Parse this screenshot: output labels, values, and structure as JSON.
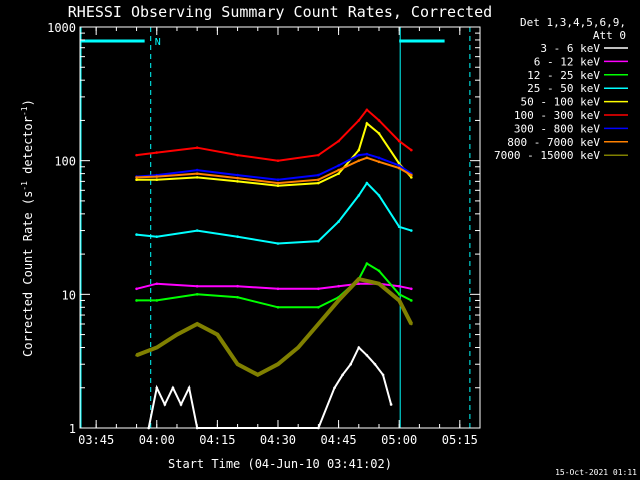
{
  "chart_data": {
    "type": "line",
    "title": "RHESSI Observing Summary Count Rates, Corrected",
    "xlabel": "Start Time (04-Jun-10 03:41:02)",
    "ylabel": "Corrected Count Rate (s⁻¹ detector⁻¹)",
    "ylabel_main": "Corrected Count Rate (s",
    "ylabel_mid": " detector",
    "ylabel_end": ")",
    "ylabel_sup": "-1",
    "yscale": "log",
    "ylim": [
      1,
      1000
    ],
    "xlim": [
      "03:41",
      "05:20"
    ],
    "x_ticks": [
      "03:45",
      "04:00",
      "04:15",
      "04:30",
      "04:45",
      "05:00",
      "05:15"
    ],
    "y_ticks": [
      "1",
      "10",
      "100",
      "1000"
    ],
    "legend_header": [
      "Det 1,3,4,5,6,9,",
      "Att 0"
    ],
    "legend_position": "right",
    "timestamp": "15-Oct-2021 01:11",
    "night_marker": "N",
    "series": [
      {
        "name": "3 - 6 keV",
        "color": "#ffffff",
        "x": [
          "03:58",
          "04:00",
          "04:02",
          "04:04",
          "04:06",
          "04:08",
          "04:10",
          "04:40",
          "04:44",
          "04:46",
          "04:48",
          "04:50",
          "04:52",
          "04:54",
          "04:56",
          "04:58"
        ],
        "y": [
          1,
          2,
          1.5,
          2,
          1.5,
          2,
          1,
          1,
          2,
          2.5,
          3,
          4,
          3.5,
          3,
          2.5,
          1.5
        ]
      },
      {
        "name": "6 - 12 keV",
        "color": "#ff00ff",
        "x": [
          "03:55",
          "04:00",
          "04:10",
          "04:20",
          "04:30",
          "04:40",
          "04:45",
          "04:50",
          "04:55",
          "05:00",
          "05:03"
        ],
        "y": [
          11,
          12,
          11.5,
          11.5,
          11,
          11,
          11.5,
          12,
          12,
          11.5,
          11
        ]
      },
      {
        "name": "12 - 25 keV",
        "color": "#00ff00",
        "x": [
          "03:55",
          "04:00",
          "04:10",
          "04:20",
          "04:30",
          "04:40",
          "04:45",
          "04:50",
          "04:52",
          "04:55",
          "05:00",
          "05:03"
        ],
        "y": [
          9,
          9,
          10,
          9.5,
          8,
          8,
          9.5,
          13,
          17,
          15,
          10,
          9
        ]
      },
      {
        "name": "25 - 50 keV",
        "color": "#00ffff",
        "x": [
          "03:55",
          "04:00",
          "04:10",
          "04:20",
          "04:30",
          "04:40",
          "04:45",
          "04:50",
          "04:52",
          "04:55",
          "05:00",
          "05:03"
        ],
        "y": [
          28,
          27,
          30,
          27,
          24,
          25,
          35,
          55,
          68,
          55,
          32,
          30
        ]
      },
      {
        "name": "50 - 100 keV",
        "color": "#ffff00",
        "x": [
          "03:55",
          "04:00",
          "04:10",
          "04:20",
          "04:30",
          "04:40",
          "04:45",
          "04:50",
          "04:52",
          "04:55",
          "05:00",
          "05:03"
        ],
        "y": [
          72,
          72,
          75,
          70,
          65,
          68,
          80,
          120,
          190,
          160,
          95,
          75
        ]
      },
      {
        "name": "100 - 300 keV",
        "color": "#ff0000",
        "x": [
          "03:55",
          "04:00",
          "04:10",
          "04:20",
          "04:30",
          "04:40",
          "04:45",
          "04:50",
          "04:52",
          "04:55",
          "05:00",
          "05:03"
        ],
        "y": [
          110,
          115,
          125,
          110,
          100,
          110,
          140,
          200,
          240,
          200,
          140,
          120
        ]
      },
      {
        "name": "300 - 800 keV",
        "color": "#0000ff",
        "x": [
          "03:55",
          "04:00",
          "04:10",
          "04:20",
          "04:30",
          "04:40",
          "04:45",
          "04:50",
          "04:52",
          "04:55",
          "05:00",
          "05:03"
        ],
        "y": [
          76,
          78,
          85,
          78,
          72,
          78,
          92,
          110,
          112,
          105,
          92,
          80
        ]
      },
      {
        "name": "800 - 7000 keV",
        "color": "#ff8000",
        "x": [
          "03:55",
          "04:00",
          "04:10",
          "04:20",
          "04:30",
          "04:40",
          "04:45",
          "04:50",
          "04:52",
          "04:55",
          "05:00",
          "05:03"
        ],
        "y": [
          75,
          76,
          80,
          74,
          68,
          72,
          85,
          100,
          105,
          98,
          88,
          78
        ]
      },
      {
        "name": "7000 - 15000 keV",
        "color": "#808000",
        "x": [
          "03:55",
          "04:00",
          "04:05",
          "04:10",
          "04:15",
          "04:20",
          "04:25",
          "04:30",
          "04:35",
          "04:40",
          "04:45",
          "04:50",
          "04:55",
          "05:00",
          "05:03"
        ],
        "y": [
          3.5,
          4,
          5,
          6,
          5,
          3,
          2.5,
          3,
          4,
          6,
          9,
          13,
          12,
          9,
          6
        ]
      }
    ]
  }
}
